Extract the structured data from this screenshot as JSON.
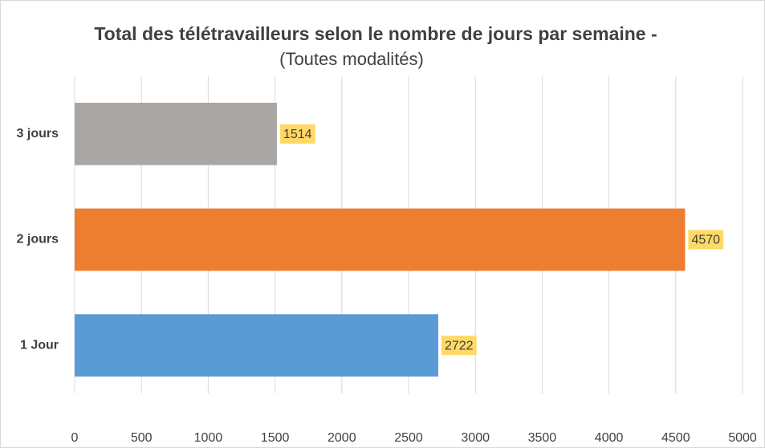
{
  "chart_data": {
    "type": "bar",
    "orientation": "horizontal",
    "title": "Total des télétravailleurs selon le nombre de jours par semaine -",
    "subtitle": "(Toutes modalités)",
    "categories": [
      "3 jours",
      "2 jours",
      "1 Jour"
    ],
    "values": [
      1514,
      4570,
      2722
    ],
    "colors": [
      "#aaa6a4",
      "#ed7d31",
      "#5b9bd5"
    ],
    "xlim": [
      0,
      5000
    ],
    "xticks": [
      0,
      500,
      1000,
      1500,
      2000,
      2500,
      3000,
      3500,
      4000,
      4500,
      5000
    ],
    "grid": true
  }
}
